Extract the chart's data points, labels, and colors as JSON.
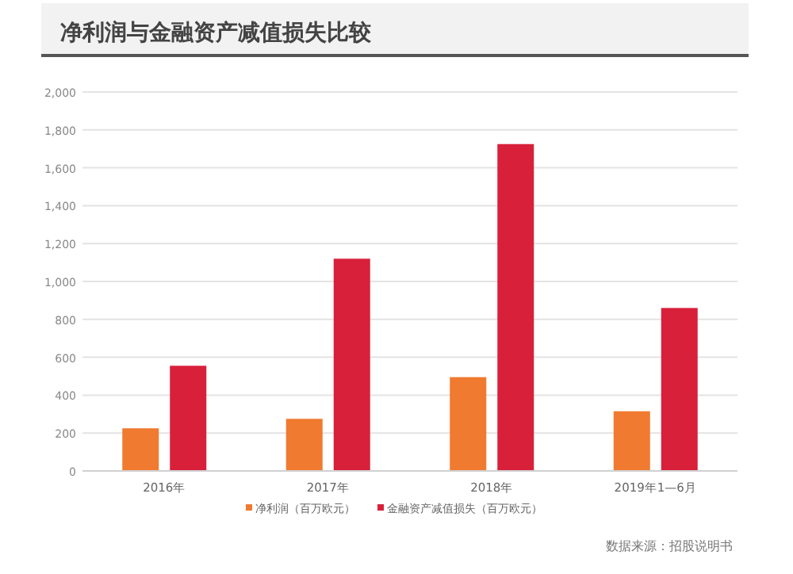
{
  "chart_data": {
    "type": "bar",
    "title": "净利润与金融资产减值损失比较",
    "categories": [
      "2016年",
      "2017年",
      "2018年",
      "2019年1—6月"
    ],
    "series": [
      {
        "name": "净利润（百万欧元）",
        "color": "#f07a30",
        "values": [
          225,
          275,
          495,
          315
        ]
      },
      {
        "name": "金融资产减值损失（百万欧元）",
        "color": "#d8203a",
        "values": [
          555,
          1120,
          1725,
          860
        ]
      }
    ],
    "ylim": [
      0,
      2000
    ],
    "yticks": [
      {
        "value": 0,
        "label": "0"
      },
      {
        "value": 200,
        "label": "200"
      },
      {
        "value": 400,
        "label": "400"
      },
      {
        "value": 600,
        "label": "600"
      },
      {
        "value": 800,
        "label": "800"
      },
      {
        "value": 1000,
        "label": "1,000"
      },
      {
        "value": 1200,
        "label": "1,200"
      },
      {
        "value": 1400,
        "label": "1,400"
      },
      {
        "value": 1600,
        "label": "1,600"
      },
      {
        "value": 1800,
        "label": "1,800"
      },
      {
        "value": 2000,
        "label": "2,000"
      }
    ],
    "grid": "y",
    "legend": "bottom",
    "annotations": [
      "数据来源：招股说明书"
    ]
  }
}
